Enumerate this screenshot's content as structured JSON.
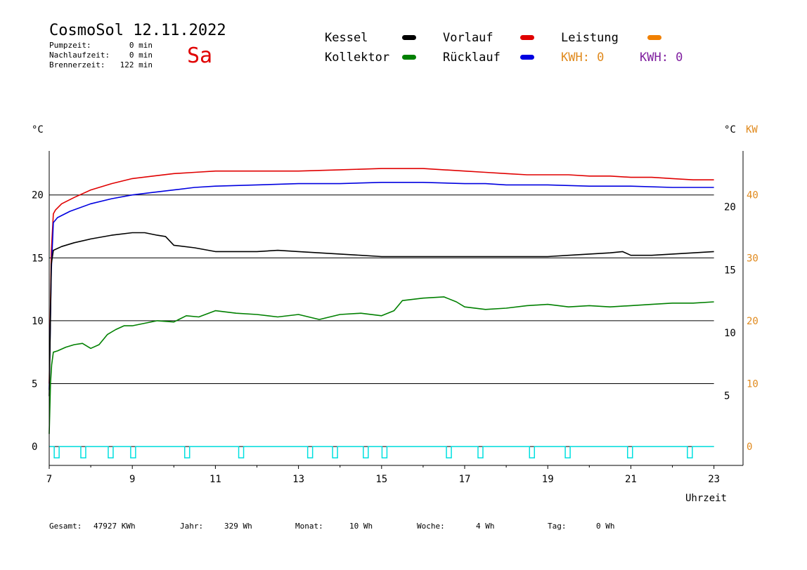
{
  "header": {
    "title": "CosmoSol 12.11.2022",
    "day": "Sa",
    "stats": [
      {
        "label": "Pumpzeit:",
        "value": "0 min"
      },
      {
        "label": "Nachlaufzeit:",
        "value": "0 min"
      },
      {
        "label": "Brennerzeit:",
        "value": "122 min"
      }
    ]
  },
  "legend": {
    "items": [
      {
        "label": "Kessel",
        "color": "#000000"
      },
      {
        "label": "Vorlauf",
        "color": "#e00000"
      },
      {
        "label": "Leistung",
        "color": "#f08000"
      },
      {
        "label": "Kollektor",
        "color": "#008000"
      },
      {
        "label": "Rücklauf",
        "color": "#0000e0"
      }
    ],
    "kwh": [
      {
        "text": "KWH: 0",
        "color": "#e08a1e"
      },
      {
        "text": "KWH: 0",
        "color": "#8020a0"
      }
    ]
  },
  "footer": [
    {
      "label": "Gesamt:",
      "value": "47927 KWh"
    },
    {
      "label": "Jahr:",
      "value": "329 Wh"
    },
    {
      "label": "Monat:",
      "value": "10 Wh"
    },
    {
      "label": "Woche:",
      "value": "4 Wh"
    },
    {
      "label": "Tag:",
      "value": "0 Wh"
    }
  ],
  "colors": {
    "pump": "#00e0e0",
    "kw_axis": "#e08a1e"
  },
  "chart_data": {
    "type": "line",
    "xlabel": "Uhrzeit",
    "x_ticks": [
      7,
      9,
      11,
      13,
      15,
      17,
      19,
      21,
      23
    ],
    "xlim": [
      7,
      23.7
    ],
    "left_axis": {
      "unit": "°C",
      "ticks": [
        0,
        5,
        10,
        15,
        20
      ],
      "ylim": [
        -1.5,
        23.5
      ]
    },
    "right_axis_temp": {
      "ticks": [
        5,
        10,
        15,
        20
      ]
    },
    "right_axis_kw": {
      "unit": "KW",
      "ticks": [
        0,
        10,
        20,
        30,
        40
      ],
      "color": "#e08a1e"
    },
    "grid": "horizontal",
    "series": [
      {
        "name": "Vorlauf",
        "color": "#e00000",
        "x": [
          7.0,
          7.05,
          7.1,
          7.15,
          7.3,
          7.6,
          8.0,
          8.5,
          9.0,
          9.5,
          10.0,
          10.5,
          11.0,
          12.0,
          13.0,
          14.0,
          15.0,
          15.5,
          16.0,
          16.5,
          17.0,
          17.5,
          18.0,
          18.5,
          19.0,
          19.5,
          20.0,
          20.5,
          21.0,
          21.5,
          22.0,
          22.5,
          23.0
        ],
        "y": [
          5,
          15.5,
          18.5,
          18.8,
          19.3,
          19.8,
          20.4,
          20.9,
          21.3,
          21.5,
          21.7,
          21.8,
          21.9,
          21.9,
          21.9,
          22.0,
          22.1,
          22.1,
          22.1,
          22.0,
          21.9,
          21.8,
          21.7,
          21.6,
          21.6,
          21.6,
          21.5,
          21.5,
          21.4,
          21.4,
          21.3,
          21.2,
          21.2
        ]
      },
      {
        "name": "Rücklauf",
        "color": "#0000e0",
        "x": [
          7.0,
          7.05,
          7.1,
          7.2,
          7.5,
          8.0,
          8.5,
          9.0,
          9.5,
          10.0,
          10.5,
          11.0,
          12.0,
          13.0,
          14.0,
          15.0,
          16.0,
          17.0,
          17.5,
          18.0,
          19.0,
          20.0,
          21.0,
          22.0,
          23.0
        ],
        "y": [
          4.5,
          14.0,
          17.8,
          18.2,
          18.7,
          19.3,
          19.7,
          20.0,
          20.2,
          20.4,
          20.6,
          20.7,
          20.8,
          20.9,
          20.9,
          21.0,
          21.0,
          20.9,
          20.9,
          20.8,
          20.8,
          20.7,
          20.7,
          20.6,
          20.6
        ]
      },
      {
        "name": "Kessel",
        "color": "#000000",
        "x": [
          7.0,
          7.05,
          7.1,
          7.3,
          7.6,
          8.0,
          8.5,
          9.0,
          9.3,
          9.6,
          9.8,
          10.0,
          10.5,
          11.0,
          11.5,
          12.0,
          12.5,
          13.0,
          13.5,
          14.0,
          14.5,
          15.0,
          16.0,
          17.0,
          18.0,
          19.0,
          19.5,
          20.0,
          20.5,
          20.8,
          21.0,
          21.5,
          22.0,
          22.5,
          23.0
        ],
        "y": [
          4.0,
          14.5,
          15.6,
          15.9,
          16.2,
          16.5,
          16.8,
          17.0,
          17.0,
          16.8,
          16.7,
          16.0,
          15.8,
          15.5,
          15.5,
          15.5,
          15.6,
          15.5,
          15.4,
          15.3,
          15.2,
          15.1,
          15.1,
          15.1,
          15.1,
          15.1,
          15.2,
          15.3,
          15.4,
          15.5,
          15.2,
          15.2,
          15.3,
          15.4,
          15.5
        ]
      },
      {
        "name": "Kollektor",
        "color": "#008000",
        "x": [
          7.0,
          7.03,
          7.06,
          7.1,
          7.2,
          7.4,
          7.6,
          7.8,
          8.0,
          8.2,
          8.4,
          8.6,
          8.8,
          9.0,
          9.3,
          9.6,
          10.0,
          10.3,
          10.6,
          11.0,
          11.5,
          12.0,
          12.5,
          13.0,
          13.5,
          14.0,
          14.5,
          15.0,
          15.3,
          15.5,
          16.0,
          16.5,
          16.8,
          17.0,
          17.5,
          18.0,
          18.5,
          19.0,
          19.5,
          20.0,
          20.5,
          21.0,
          21.5,
          22.0,
          22.5,
          23.0
        ],
        "y": [
          1.0,
          5.0,
          6.5,
          7.5,
          7.6,
          7.9,
          8.1,
          8.2,
          7.8,
          8.1,
          8.9,
          9.3,
          9.6,
          9.6,
          9.8,
          10.0,
          9.9,
          10.4,
          10.3,
          10.8,
          10.6,
          10.5,
          10.3,
          10.5,
          10.1,
          10.5,
          10.6,
          10.4,
          10.8,
          11.6,
          11.8,
          11.9,
          11.5,
          11.1,
          10.9,
          11.0,
          11.2,
          11.3,
          11.1,
          11.2,
          11.1,
          11.2,
          11.3,
          11.4,
          11.4,
          11.5
        ]
      }
    ],
    "pump_pulses": [
      7.18,
      7.82,
      8.48,
      9.02,
      10.32,
      11.62,
      13.28,
      13.88,
      14.62,
      15.07,
      16.62,
      17.38,
      18.62,
      19.48,
      20.98,
      22.42
    ]
  }
}
